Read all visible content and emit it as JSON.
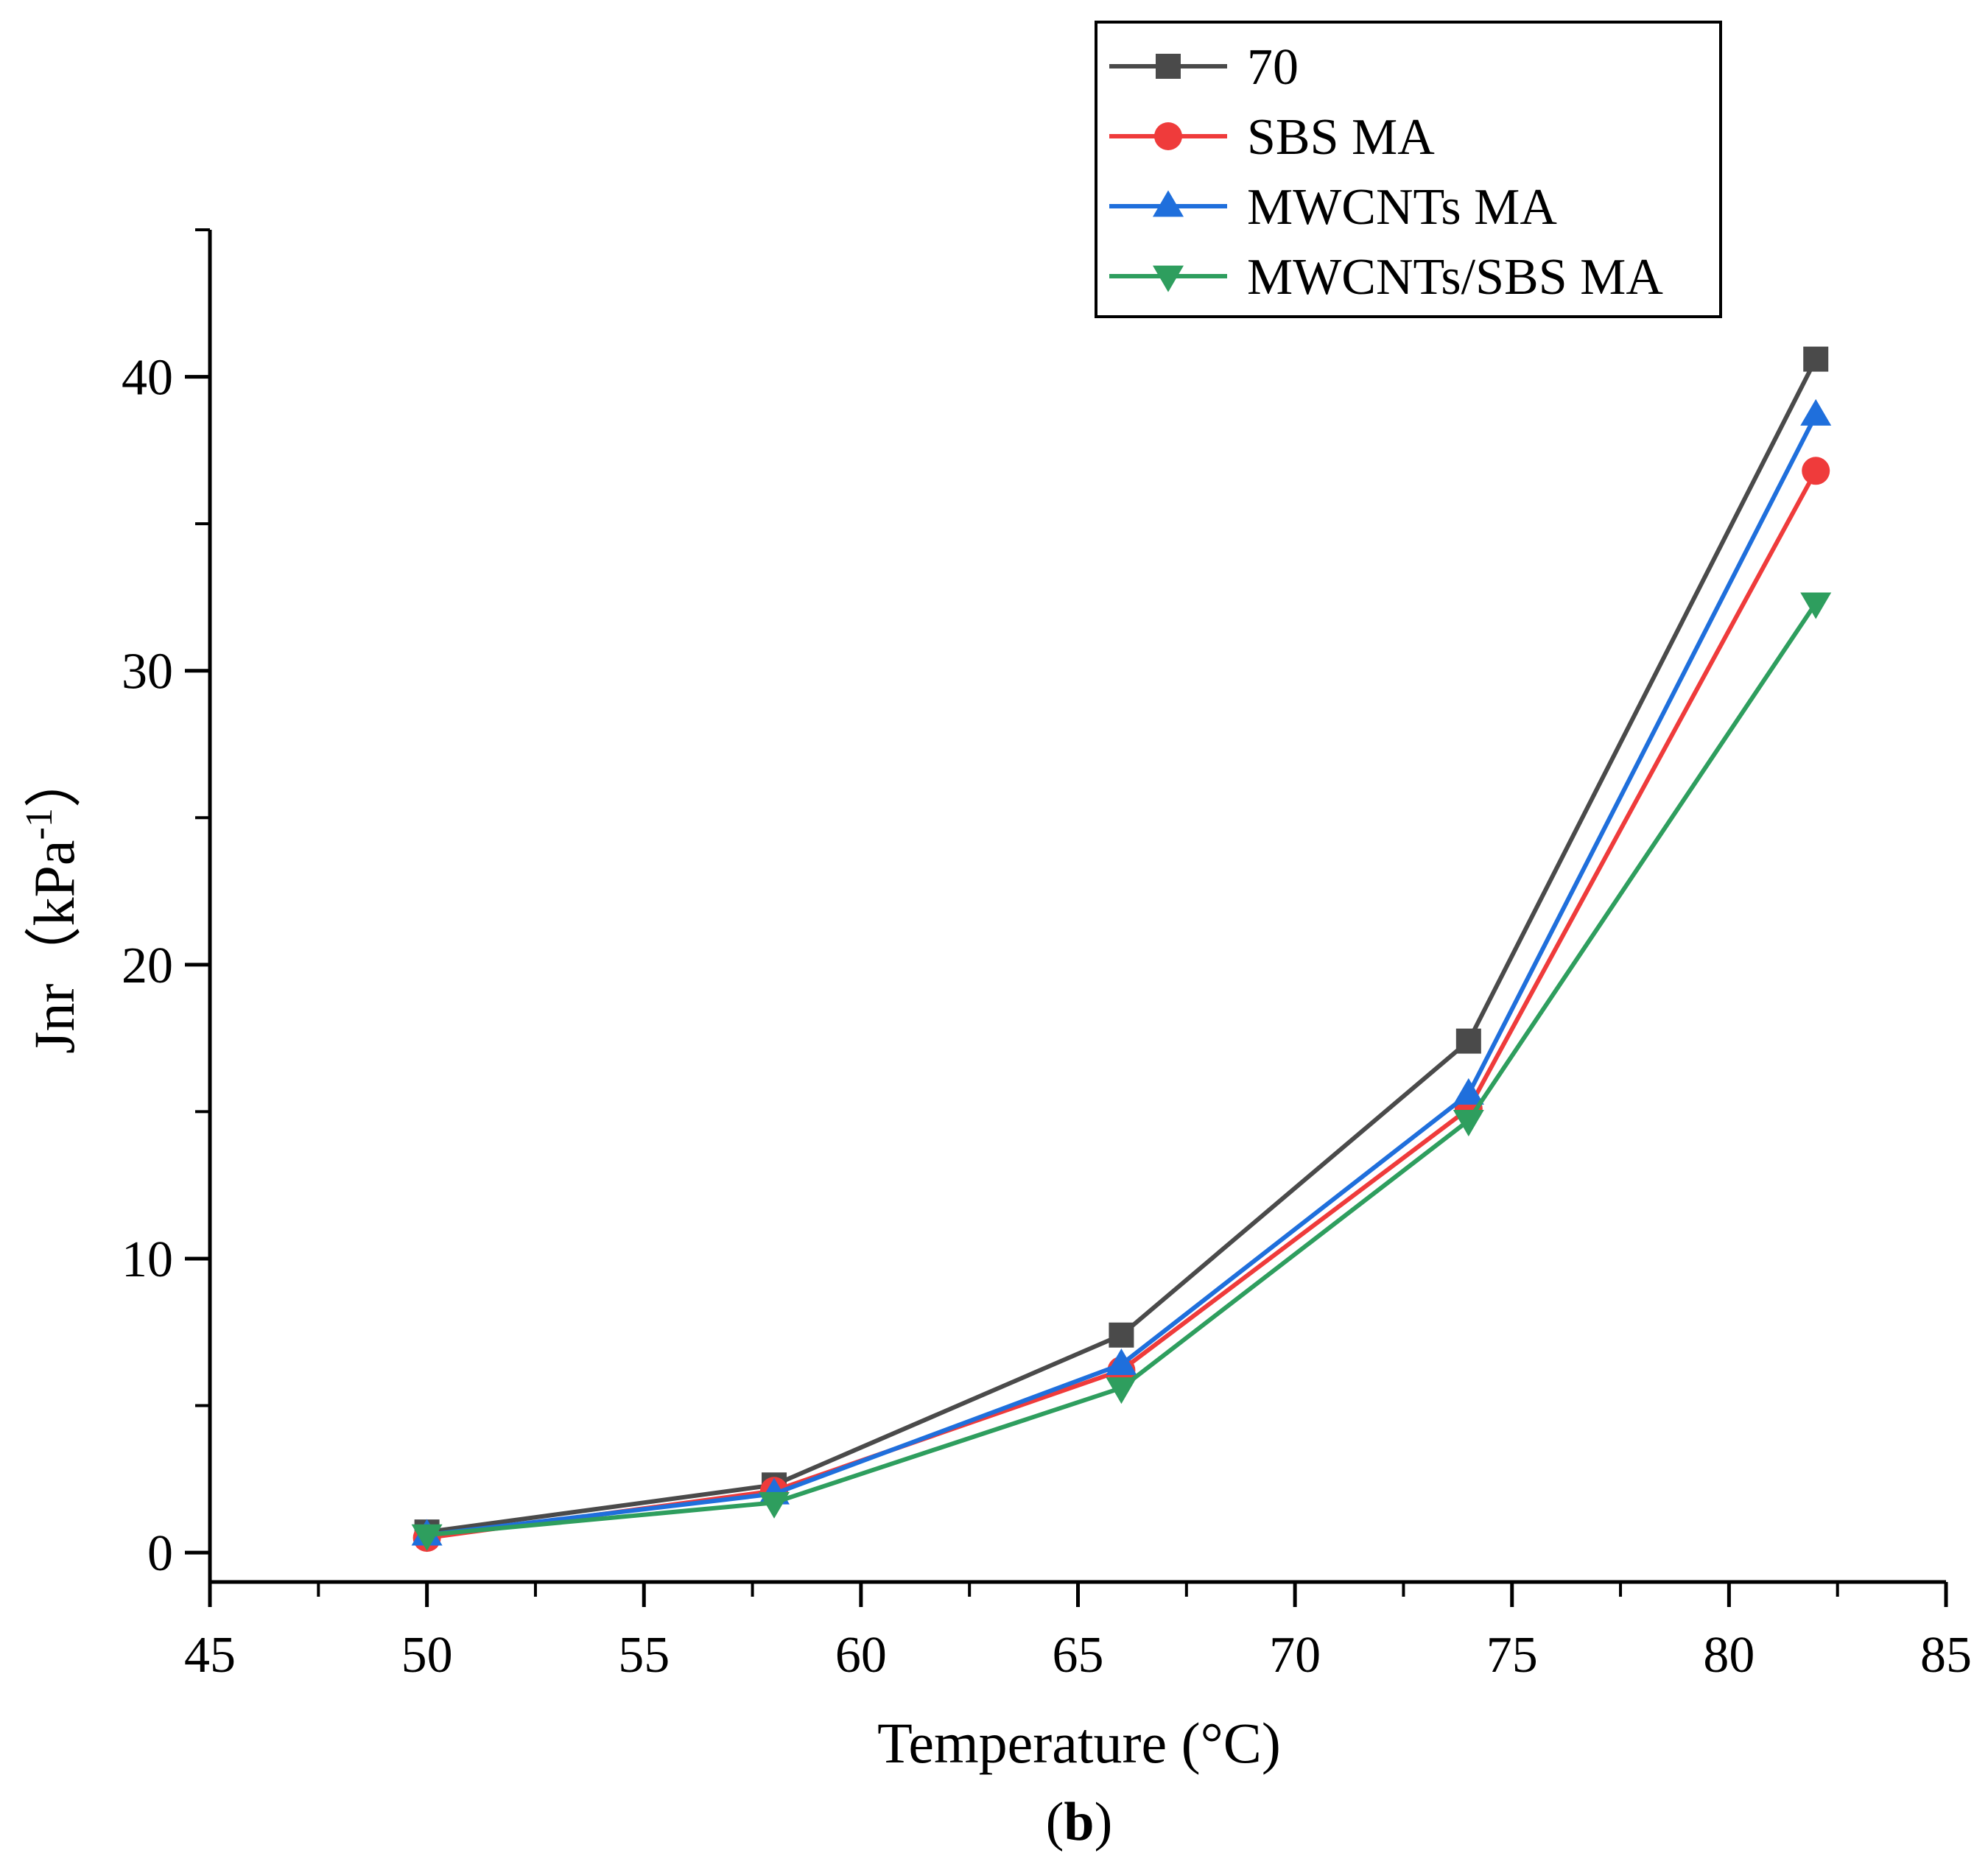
{
  "chart_data": {
    "type": "line",
    "title": "",
    "xlabel": "Temperature (°C)",
    "ylabel": {
      "main": "Jnr（kPa",
      "sup": "-1",
      "close": "）"
    },
    "panel_label": {
      "open": "(",
      "letter": "b",
      "close": ")"
    },
    "xlim": [
      45,
      85
    ],
    "ylim": [
      -1,
      45
    ],
    "xticks": [
      45,
      50,
      55,
      60,
      65,
      70,
      75,
      80,
      85
    ],
    "yticks": [
      0,
      10,
      20,
      30,
      40
    ],
    "x": [
      50,
      58,
      66,
      74,
      82
    ],
    "legend_position": "top-right",
    "series": [
      {
        "name": "70",
        "marker": "square",
        "color": "#4a4a4a",
        "values": [
          0.7,
          2.3,
          7.4,
          17.4,
          40.6
        ]
      },
      {
        "name": "SBS MA",
        "marker": "circle",
        "color": "#ef3b3b",
        "values": [
          0.5,
          2.1,
          6.2,
          15.1,
          36.8
        ]
      },
      {
        "name": "MWCNTs MA",
        "marker": "triangle-up",
        "color": "#1f6fdc",
        "values": [
          0.6,
          2.0,
          6.4,
          15.6,
          38.7
        ]
      },
      {
        "name": "MWCNTs/SBS MA",
        "marker": "triangle-down",
        "color": "#2e9e5e",
        "values": [
          0.6,
          1.7,
          5.6,
          14.7,
          32.3
        ]
      }
    ]
  }
}
